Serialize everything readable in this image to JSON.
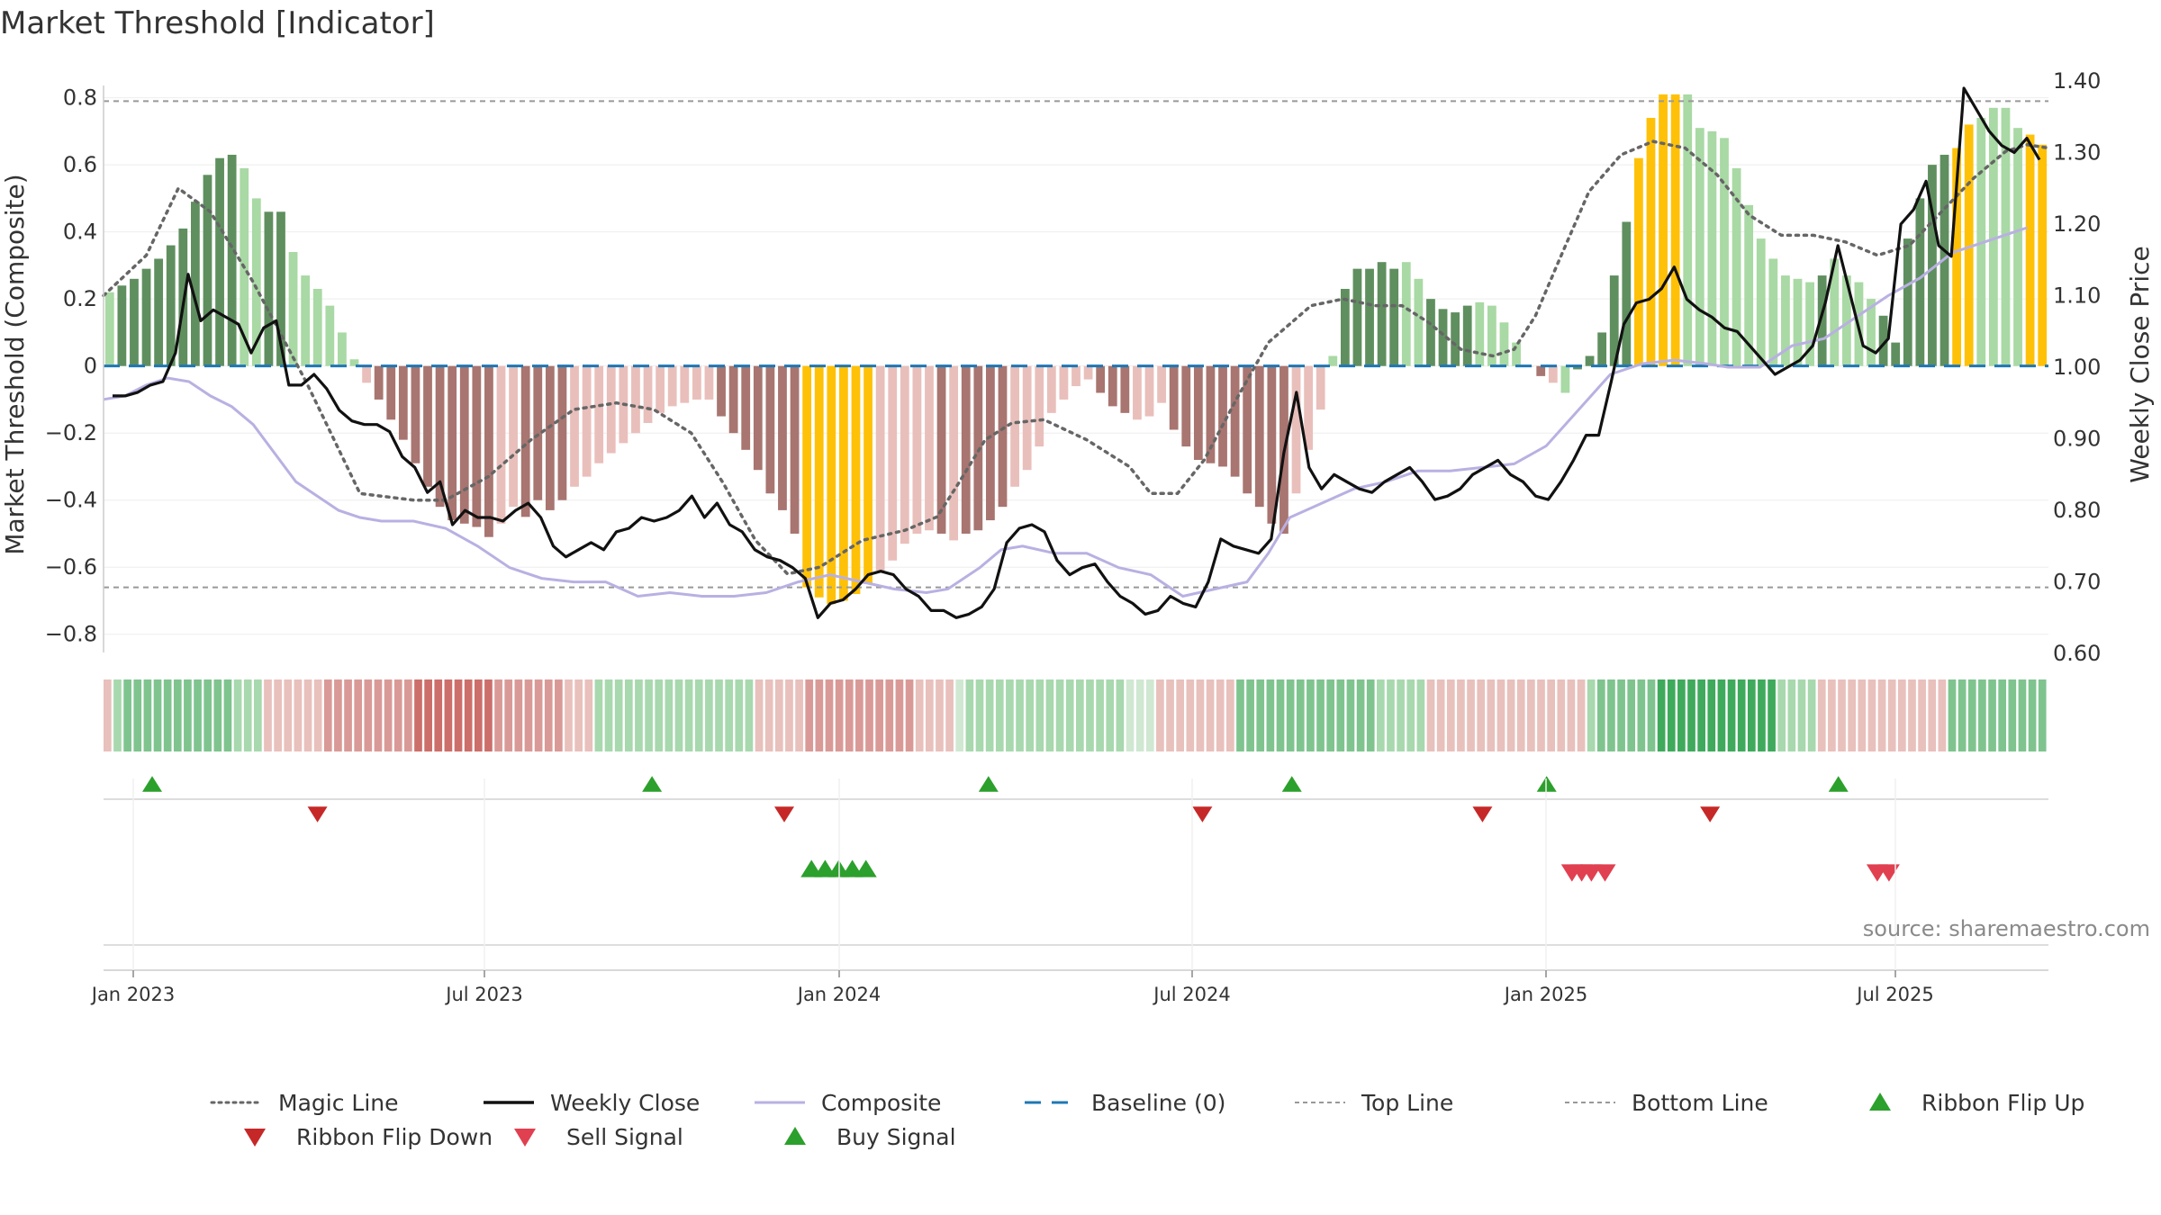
{
  "title": "Market Threshold [Indicator]",
  "source": "source: sharemaestro.com",
  "colors": {
    "strong_pos": "#5f8f5f",
    "weak_pos": "#a9d9a4",
    "strong_neg": "#a87570",
    "weak_neg": "#e9bfbb",
    "extreme": "#ffc107",
    "magic": "#666666",
    "close": "#111111",
    "composite_line": "#b9b0e2",
    "baseline": "#1f77b4",
    "threshold": "#888888",
    "buy": "#2ca02c",
    "sell": "#d62728"
  },
  "chart_data": {
    "type": "bar",
    "title": "Market Threshold [Indicator]",
    "ylabel": "Market Threshold (Composite)",
    "y2label": "Weekly Close Price",
    "ylim": [
      -0.9,
      0.85
    ],
    "y2lim": [
      0.58,
      1.4
    ],
    "yticks": [
      "0.8",
      "0.6",
      "0.4",
      "0.2",
      "0",
      "−0.2",
      "−0.4",
      "−0.6",
      "−0.8"
    ],
    "y2ticks": [
      "1.40",
      "1.30",
      "1.20",
      "1.10",
      "1.00",
      "0.90",
      "0.80",
      "0.70",
      "0.60"
    ],
    "xticks": [
      "Jan 2023",
      "Jul 2023",
      "Jan 2024",
      "Jul 2024",
      "Jan 2025",
      "Jul 2025"
    ],
    "top_line": 0.79,
    "bottom_line": -0.66,
    "composite": [
      0.22,
      0.24,
      0.26,
      0.29,
      0.32,
      0.36,
      0.41,
      0.49,
      0.57,
      0.62,
      0.63,
      0.59,
      0.5,
      0.46,
      0.46,
      0.34,
      0.27,
      0.23,
      0.18,
      0.1,
      0.02,
      -0.05,
      -0.1,
      -0.16,
      -0.22,
      -0.29,
      -0.36,
      -0.42,
      -0.46,
      -0.47,
      -0.48,
      -0.51,
      -0.47,
      -0.42,
      -0.45,
      -0.4,
      -0.43,
      -0.4,
      -0.36,
      -0.33,
      -0.29,
      -0.26,
      -0.23,
      -0.2,
      -0.17,
      -0.14,
      -0.12,
      -0.11,
      -0.1,
      -0.1,
      -0.15,
      -0.2,
      -0.25,
      -0.31,
      -0.38,
      -0.43,
      -0.5,
      -0.66,
      -0.69,
      -0.71,
      -0.7,
      -0.68,
      -0.65,
      -0.61,
      -0.58,
      -0.53,
      -0.5,
      -0.49,
      -0.5,
      -0.52,
      -0.5,
      -0.49,
      -0.46,
      -0.42,
      -0.36,
      -0.31,
      -0.24,
      -0.14,
      -0.1,
      -0.06,
      -0.04,
      -0.08,
      -0.12,
      -0.14,
      -0.16,
      -0.15,
      -0.11,
      -0.19,
      -0.24,
      -0.28,
      -0.29,
      -0.3,
      -0.33,
      -0.38,
      -0.42,
      -0.47,
      -0.5,
      -0.38,
      -0.25,
      -0.13,
      0.03,
      0.23,
      0.29,
      0.29,
      0.31,
      0.29,
      0.31,
      0.26,
      0.2,
      0.17,
      0.16,
      0.18,
      0.19,
      0.18,
      0.13,
      0.07,
      0.0,
      -0.03,
      -0.05,
      -0.08,
      -0.01,
      0.03,
      0.1,
      0.27,
      0.43,
      0.62,
      0.74,
      0.81,
      0.81,
      0.81,
      0.71,
      0.7,
      0.68,
      0.59,
      0.48,
      0.38,
      0.32,
      0.27,
      0.26,
      0.25,
      0.27,
      0.32,
      0.27,
      0.25,
      0.2,
      0.15,
      0.07,
      0.38,
      0.5,
      0.6,
      0.63,
      0.65,
      0.72,
      0.74,
      0.77,
      0.77,
      0.71,
      0.69,
      0.66
    ],
    "state": [
      1,
      2,
      2,
      2,
      2,
      2,
      2,
      2,
      2,
      2,
      2,
      1,
      1,
      2,
      2,
      1,
      1,
      1,
      1,
      1,
      1,
      -1,
      -2,
      -2,
      -2,
      -2,
      -2,
      -2,
      -2,
      -2,
      -2,
      -2,
      -1,
      -1,
      -2,
      -2,
      -2,
      -2,
      -1,
      -1,
      -1,
      -1,
      -1,
      -1,
      -1,
      -1,
      -1,
      -1,
      -1,
      -1,
      -2,
      -2,
      -2,
      -2,
      -2,
      -2,
      -2,
      3,
      3,
      3,
      3,
      3,
      3,
      -1,
      -1,
      -1,
      -1,
      -1,
      -2,
      -1,
      -2,
      -2,
      -2,
      -2,
      -1,
      -1,
      -1,
      -1,
      -1,
      -1,
      -1,
      -2,
      -2,
      -2,
      -1,
      -1,
      -1,
      -2,
      -2,
      -2,
      -2,
      -2,
      -2,
      -2,
      -2,
      -2,
      -2,
      -1,
      -1,
      -1,
      1,
      2,
      2,
      2,
      2,
      2,
      1,
      1,
      2,
      2,
      2,
      2,
      1,
      1,
      1,
      1,
      -1,
      -2,
      -1,
      1,
      2,
      2,
      2,
      2,
      2,
      3,
      3,
      3,
      3,
      1,
      1,
      1,
      1,
      1,
      1,
      1,
      1,
      1,
      1,
      1,
      2,
      1,
      1,
      1,
      1,
      2,
      2,
      2,
      2,
      2,
      2,
      3,
      3,
      1,
      1,
      1,
      1
    ],
    "magic_line": [
      [
        0,
        0.21
      ],
      [
        8,
        0.33
      ],
      [
        14,
        0.53
      ],
      [
        20,
        0.46
      ],
      [
        28,
        0.25
      ],
      [
        38,
        -0.05
      ],
      [
        48,
        -0.38
      ],
      [
        58,
        -0.4
      ],
      [
        64,
        -0.4
      ],
      [
        72,
        -0.33
      ],
      [
        80,
        -0.22
      ],
      [
        88,
        -0.13
      ],
      [
        96,
        -0.11
      ],
      [
        103,
        -0.13
      ],
      [
        110,
        -0.2
      ],
      [
        116,
        -0.35
      ],
      [
        122,
        -0.52
      ],
      [
        128,
        -0.62
      ],
      [
        134,
        -0.6
      ],
      [
        142,
        -0.52
      ],
      [
        150,
        -0.49
      ],
      [
        156,
        -0.45
      ],
      [
        160,
        -0.35
      ],
      [
        165,
        -0.22
      ],
      [
        170,
        -0.17
      ],
      [
        176,
        -0.16
      ],
      [
        184,
        -0.22
      ],
      [
        192,
        -0.3
      ],
      [
        196,
        -0.38
      ],
      [
        201,
        -0.38
      ],
      [
        206,
        -0.28
      ],
      [
        212,
        -0.1
      ],
      [
        218,
        0.07
      ],
      [
        226,
        0.18
      ],
      [
        232,
        0.2
      ],
      [
        238,
        0.18
      ],
      [
        243,
        0.18
      ],
      [
        248,
        0.13
      ],
      [
        254,
        0.05
      ],
      [
        260,
        0.03
      ],
      [
        264,
        0.05
      ],
      [
        268,
        0.15
      ],
      [
        272,
        0.3
      ],
      [
        278,
        0.52
      ],
      [
        284,
        0.63
      ],
      [
        290,
        0.67
      ],
      [
        296,
        0.65
      ],
      [
        302,
        0.57
      ],
      [
        308,
        0.45
      ],
      [
        314,
        0.39
      ],
      [
        320,
        0.39
      ],
      [
        326,
        0.37
      ],
      [
        332,
        0.33
      ],
      [
        338,
        0.36
      ],
      [
        344,
        0.46
      ],
      [
        350,
        0.56
      ],
      [
        356,
        0.64
      ],
      [
        360,
        0.66
      ],
      [
        364,
        0.65
      ]
    ],
    "weekly_close": [
      [
        0,
        0.96
      ],
      [
        1,
        0.96
      ],
      [
        2,
        0.965
      ],
      [
        3,
        0.975
      ],
      [
        4,
        0.98
      ],
      [
        5,
        1.02
      ],
      [
        6,
        1.13
      ],
      [
        7,
        1.065
      ],
      [
        8,
        1.08
      ],
      [
        9,
        1.07
      ],
      [
        10,
        1.06
      ],
      [
        11,
        1.02
      ],
      [
        12,
        1.055
      ],
      [
        13,
        1.065
      ],
      [
        14,
        0.975
      ],
      [
        15,
        0.975
      ],
      [
        16,
        0.99
      ],
      [
        17,
        0.97
      ],
      [
        18,
        0.94
      ],
      [
        19,
        0.925
      ],
      [
        20,
        0.92
      ],
      [
        21,
        0.92
      ],
      [
        22,
        0.91
      ],
      [
        23,
        0.875
      ],
      [
        24,
        0.86
      ],
      [
        25,
        0.825
      ],
      [
        26,
        0.84
      ],
      [
        27,
        0.78
      ],
      [
        28,
        0.8
      ],
      [
        29,
        0.79
      ],
      [
        30,
        0.79
      ],
      [
        31,
        0.785
      ],
      [
        32,
        0.8
      ],
      [
        33,
        0.81
      ],
      [
        34,
        0.79
      ],
      [
        35,
        0.75
      ],
      [
        36,
        0.735
      ],
      [
        37,
        0.745
      ],
      [
        38,
        0.755
      ],
      [
        39,
        0.745
      ],
      [
        40,
        0.77
      ],
      [
        41,
        0.775
      ],
      [
        42,
        0.79
      ],
      [
        43,
        0.785
      ],
      [
        44,
        0.79
      ],
      [
        45,
        0.8
      ],
      [
        46,
        0.82
      ],
      [
        47,
        0.79
      ],
      [
        48,
        0.81
      ],
      [
        49,
        0.78
      ],
      [
        50,
        0.77
      ],
      [
        51,
        0.745
      ],
      [
        52,
        0.735
      ],
      [
        53,
        0.73
      ],
      [
        54,
        0.72
      ],
      [
        55,
        0.705
      ],
      [
        56,
        0.65
      ],
      [
        57,
        0.67
      ],
      [
        58,
        0.675
      ],
      [
        59,
        0.69
      ],
      [
        60,
        0.71
      ],
      [
        61,
        0.715
      ],
      [
        62,
        0.71
      ],
      [
        63,
        0.69
      ],
      [
        64,
        0.68
      ],
      [
        65,
        0.66
      ],
      [
        66,
        0.66
      ],
      [
        67,
        0.65
      ],
      [
        68,
        0.655
      ],
      [
        69,
        0.665
      ],
      [
        70,
        0.69
      ],
      [
        71,
        0.755
      ],
      [
        72,
        0.775
      ],
      [
        73,
        0.78
      ],
      [
        74,
        0.77
      ],
      [
        75,
        0.73
      ],
      [
        76,
        0.71
      ],
      [
        77,
        0.72
      ],
      [
        78,
        0.725
      ],
      [
        79,
        0.7
      ],
      [
        80,
        0.68
      ],
      [
        81,
        0.67
      ],
      [
        82,
        0.655
      ],
      [
        83,
        0.66
      ],
      [
        84,
        0.68
      ],
      [
        85,
        0.67
      ],
      [
        86,
        0.665
      ],
      [
        87,
        0.7
      ],
      [
        88,
        0.76
      ],
      [
        89,
        0.75
      ],
      [
        90,
        0.745
      ],
      [
        91,
        0.74
      ],
      [
        92,
        0.76
      ],
      [
        93,
        0.88
      ],
      [
        94,
        0.965
      ],
      [
        95,
        0.86
      ],
      [
        96,
        0.83
      ],
      [
        97,
        0.85
      ],
      [
        98,
        0.84
      ],
      [
        99,
        0.83
      ],
      [
        100,
        0.825
      ],
      [
        101,
        0.84
      ],
      [
        102,
        0.85
      ],
      [
        103,
        0.86
      ],
      [
        104,
        0.84
      ],
      [
        105,
        0.815
      ],
      [
        106,
        0.82
      ],
      [
        107,
        0.83
      ],
      [
        108,
        0.85
      ],
      [
        109,
        0.86
      ],
      [
        110,
        0.87
      ],
      [
        111,
        0.85
      ],
      [
        112,
        0.84
      ],
      [
        113,
        0.82
      ],
      [
        114,
        0.815
      ],
      [
        115,
        0.84
      ],
      [
        116,
        0.87
      ],
      [
        117,
        0.905
      ],
      [
        118,
        0.905
      ],
      [
        119,
        0.98
      ],
      [
        120,
        1.06
      ],
      [
        121,
        1.09
      ],
      [
        122,
        1.095
      ],
      [
        123,
        1.11
      ],
      [
        124,
        1.14
      ],
      [
        125,
        1.095
      ],
      [
        126,
        1.08
      ],
      [
        127,
        1.07
      ],
      [
        128,
        1.055
      ],
      [
        129,
        1.05
      ],
      [
        130,
        1.03
      ],
      [
        131,
        1.01
      ],
      [
        132,
        0.99
      ],
      [
        133,
        1.0
      ],
      [
        134,
        1.01
      ],
      [
        135,
        1.03
      ],
      [
        136,
        1.09
      ],
      [
        137,
        1.17
      ],
      [
        138,
        1.1
      ],
      [
        139,
        1.03
      ],
      [
        140,
        1.02
      ],
      [
        141,
        1.04
      ],
      [
        142,
        1.2
      ],
      [
        143,
        1.22
      ],
      [
        144,
        1.26
      ],
      [
        145,
        1.17
      ],
      [
        146,
        1.155
      ],
      [
        147,
        1.39
      ],
      [
        148,
        1.36
      ],
      [
        149,
        1.33
      ],
      [
        150,
        1.31
      ],
      [
        151,
        1.3
      ],
      [
        152,
        1.32
      ],
      [
        153,
        1.29
      ]
    ],
    "composite_line": [
      [
        0,
        0.955
      ],
      [
        4,
        0.96
      ],
      [
        8,
        0.975
      ],
      [
        12,
        0.985
      ],
      [
        16,
        0.98
      ],
      [
        20,
        0.96
      ],
      [
        24,
        0.945
      ],
      [
        28,
        0.92
      ],
      [
        32,
        0.88
      ],
      [
        36,
        0.84
      ],
      [
        40,
        0.82
      ],
      [
        44,
        0.8
      ],
      [
        48,
        0.79
      ],
      [
        52,
        0.785
      ],
      [
        58,
        0.785
      ],
      [
        64,
        0.775
      ],
      [
        70,
        0.75
      ],
      [
        76,
        0.72
      ],
      [
        82,
        0.705
      ],
      [
        88,
        0.7
      ],
      [
        94,
        0.7
      ],
      [
        100,
        0.68
      ],
      [
        106,
        0.685
      ],
      [
        112,
        0.68
      ],
      [
        118,
        0.68
      ],
      [
        124,
        0.685
      ],
      [
        130,
        0.7
      ],
      [
        136,
        0.71
      ],
      [
        142,
        0.7
      ],
      [
        148,
        0.69
      ],
      [
        154,
        0.685
      ],
      [
        158,
        0.69
      ],
      [
        164,
        0.72
      ],
      [
        168,
        0.745
      ],
      [
        172,
        0.75
      ],
      [
        178,
        0.74
      ],
      [
        184,
        0.74
      ],
      [
        190,
        0.72
      ],
      [
        196,
        0.71
      ],
      [
        202,
        0.68
      ],
      [
        208,
        0.69
      ],
      [
        214,
        0.7
      ],
      [
        218,
        0.74
      ],
      [
        222,
        0.79
      ],
      [
        228,
        0.81
      ],
      [
        234,
        0.83
      ],
      [
        240,
        0.84
      ],
      [
        246,
        0.855
      ],
      [
        252,
        0.855
      ],
      [
        258,
        0.86
      ],
      [
        264,
        0.865
      ],
      [
        270,
        0.89
      ],
      [
        276,
        0.94
      ],
      [
        282,
        0.99
      ],
      [
        288,
        1.005
      ],
      [
        294,
        1.01
      ],
      [
        300,
        1.005
      ],
      [
        304,
        1.0
      ],
      [
        310,
        1.0
      ],
      [
        316,
        1.03
      ],
      [
        322,
        1.04
      ],
      [
        328,
        1.07
      ],
      [
        334,
        1.1
      ],
      [
        340,
        1.125
      ],
      [
        346,
        1.16
      ],
      [
        352,
        1.175
      ],
      [
        360,
        1.195
      ]
    ],
    "ribbon": [
      -1,
      1,
      2,
      2,
      2,
      2,
      2,
      2,
      2,
      2,
      2,
      2,
      2,
      1,
      1,
      1,
      -1,
      -1,
      -1,
      -1,
      -1,
      -1,
      -2,
      -2,
      -2,
      -2,
      -2,
      -2,
      -2,
      -2,
      -2,
      -3,
      -3,
      -3,
      -3,
      -3,
      -3,
      -3,
      -3,
      -2,
      -2,
      -2,
      -2,
      -2,
      -2,
      -2,
      -1,
      -1,
      -1,
      1,
      1,
      1,
      1,
      1,
      1,
      1,
      1,
      1,
      1,
      1,
      1,
      1,
      1,
      1,
      1,
      -1,
      -1,
      -1,
      -1,
      -1,
      -2,
      -2,
      -2,
      -2,
      -2,
      -2,
      -2,
      -2,
      -2,
      -2,
      -2,
      -1,
      -1,
      -1,
      -1,
      0,
      1,
      1,
      1,
      1,
      1,
      1,
      1,
      1,
      1,
      1,
      1,
      1,
      1,
      1,
      1,
      1,
      0,
      0,
      0,
      -1,
      -1,
      -1,
      -1,
      -1,
      -1,
      -1,
      -1,
      2,
      2,
      2,
      2,
      2,
      2,
      2,
      2,
      2,
      2,
      2,
      2,
      2,
      2,
      1,
      1,
      1,
      1,
      1,
      -1,
      -1,
      -1,
      -1,
      -1,
      -1,
      -1,
      -1,
      -1,
      -1,
      -1,
      -1,
      -1,
      -1,
      -1,
      -1,
      1,
      2,
      2,
      2,
      2,
      2,
      2,
      3,
      3,
      3,
      3,
      3,
      3,
      3,
      3,
      3,
      3,
      3,
      3,
      1,
      1,
      1,
      1,
      -1,
      -1,
      -1,
      -1,
      -1,
      -1,
      -1,
      -1,
      -1,
      -1,
      -1,
      -1,
      -1,
      2,
      2,
      2,
      2,
      2,
      2,
      2,
      2,
      2,
      2
    ],
    "ribbon_flip_up": [
      0.025,
      0.282,
      0.455,
      0.611,
      0.742,
      0.892
    ],
    "ribbon_flip_down": [
      0.11,
      0.35,
      0.565,
      0.709,
      0.826
    ],
    "sell_signal": [
      0.755,
      0.76,
      0.765,
      0.772,
      0.912,
      0.918
    ],
    "buy_signal": [
      0.364,
      0.371,
      0.378,
      0.385,
      0.392
    ]
  },
  "legend": [
    {
      "label": "Magic Line",
      "kind": "dotted",
      "color": "#666666"
    },
    {
      "label": "Weekly Close",
      "kind": "solid",
      "color": "#111111"
    },
    {
      "label": "Composite",
      "kind": "solid-light",
      "color": "#b9b0e2"
    },
    {
      "label": "Baseline (0)",
      "kind": "dashed",
      "color": "#1f77b4"
    },
    {
      "label": "Top Line",
      "kind": "dashed-gray",
      "color": "#999999"
    },
    {
      "label": "Bottom Line",
      "kind": "dashed-gray",
      "color": "#999999"
    },
    {
      "label": "Ribbon Flip Up",
      "kind": "tri-up",
      "color": "#2ca02c"
    },
    {
      "label": "Ribbon Flip Down",
      "kind": "tri-down",
      "color": "#c62828"
    },
    {
      "label": "Sell Signal",
      "kind": "tri-down",
      "color": "#e04050"
    },
    {
      "label": "Buy Signal",
      "kind": "tri-up",
      "color": "#2ca02c"
    }
  ]
}
